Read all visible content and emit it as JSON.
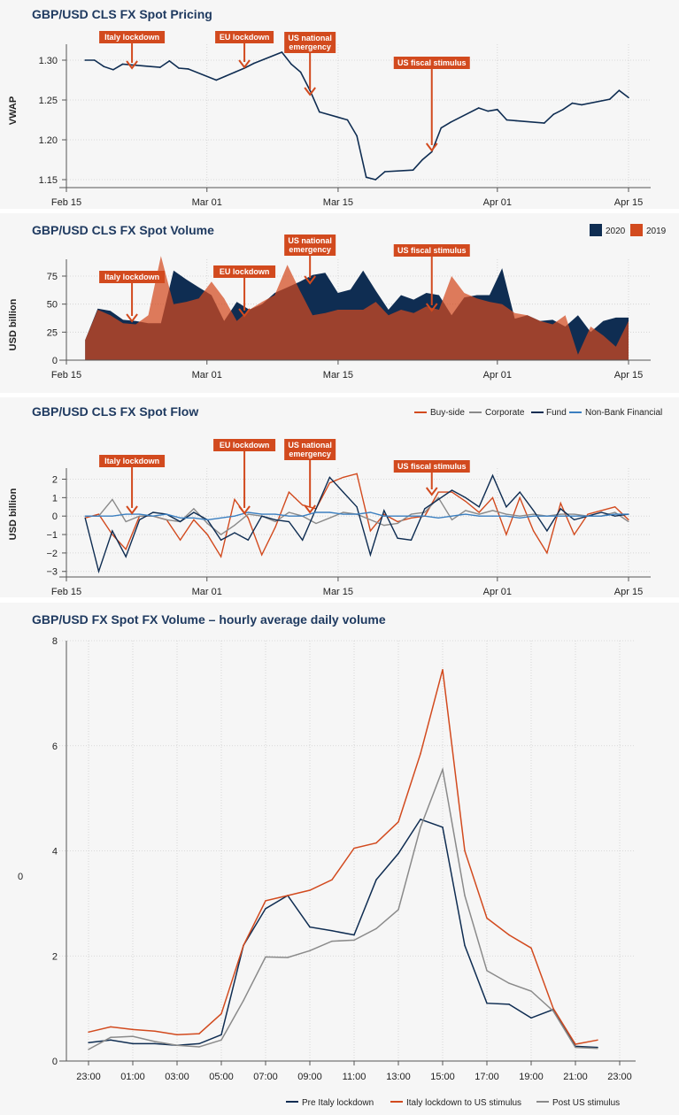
{
  "colors": {
    "navy": "#0f2d52",
    "orange": "#d24a1e",
    "grey": "#8a8a8a",
    "blue": "#3b7fc0",
    "title": "#1f3a60"
  },
  "date_ticks": [
    "Feb 15",
    "Mar 01",
    "Mar 15",
    "Apr 01",
    "Apr 15"
  ],
  "chart_data": [
    {
      "type": "line",
      "title": "GBP/USD CLS FX Spot Pricing",
      "ylabel": "VWAP",
      "ylim": [
        1.14,
        1.32
      ],
      "yticks": [
        "1.15",
        "1.20",
        "1.25",
        "1.30"
      ],
      "x": [
        "Feb 17",
        "Feb 18",
        "Feb 19",
        "Feb 20",
        "Feb 21",
        "Feb 24",
        "Feb 25",
        "Feb 26",
        "Feb 27",
        "Feb 28",
        "Mar 02",
        "Mar 03",
        "Mar 04",
        "Mar 05",
        "Mar 06",
        "Mar 09",
        "Mar 10",
        "Mar 11",
        "Mar 12",
        "Mar 13",
        "Mar 16",
        "Mar 17",
        "Mar 18",
        "Mar 19",
        "Mar 20",
        "Mar 23",
        "Mar 24",
        "Mar 25",
        "Mar 26",
        "Mar 27",
        "Mar 30",
        "Mar 31",
        "Apr 01",
        "Apr 02",
        "Apr 03",
        "Apr 06",
        "Apr 07",
        "Apr 08",
        "Apr 09",
        "Apr 10",
        "Apr 13",
        "Apr 14",
        "Apr 15"
      ],
      "series": [
        {
          "values": [
            1.3,
            1.3,
            1.292,
            1.288,
            1.295,
            1.292,
            1.291,
            1.299,
            1.29,
            1.289,
            1.275,
            1.28,
            1.285,
            1.29,
            1.296,
            1.31,
            1.295,
            1.285,
            1.262,
            1.235,
            1.225,
            1.205,
            1.153,
            1.15,
            1.16,
            1.162,
            1.175,
            1.185,
            1.215,
            1.222,
            1.24,
            1.236,
            1.238,
            1.225,
            1.224,
            1.221,
            1.232,
            1.238,
            1.246,
            1.244,
            1.251,
            1.262,
            1.253
          ]
        }
      ],
      "annotations": [
        {
          "label": "Italy lockdown",
          "x": "Feb 22"
        },
        {
          "label": "EU lockdown",
          "x": "Mar 05"
        },
        {
          "label": "US national emergency",
          "x": "Mar 12"
        },
        {
          "label": "US fiscal stimulus",
          "x": "Mar 25"
        }
      ]
    },
    {
      "type": "area",
      "title": "GBP/USD CLS FX Spot Volume",
      "ylabel": "USD billion",
      "ylim": [
        0,
        90
      ],
      "yticks": [
        "0",
        "25",
        "50",
        "75"
      ],
      "legend": "top-right",
      "series": [
        {
          "name": "2020",
          "values": [
            18,
            46,
            44,
            36,
            35,
            33,
            33,
            80,
            72,
            65,
            58,
            35,
            52,
            45,
            50,
            60,
            65,
            70,
            76,
            78,
            60,
            63,
            80,
            62,
            45,
            58,
            54,
            60,
            58,
            40,
            56,
            58,
            58,
            82,
            37,
            40,
            35,
            36,
            30,
            40,
            25,
            35,
            38,
            38
          ]
        },
        {
          "name": "2019",
          "values": [
            18,
            45,
            40,
            33,
            32,
            40,
            93,
            50,
            52,
            55,
            70,
            55,
            35,
            45,
            52,
            58,
            85,
            62,
            40,
            42,
            45,
            45,
            45,
            52,
            40,
            45,
            42,
            48,
            45,
            75,
            60,
            55,
            52,
            50,
            42,
            40,
            35,
            32,
            40,
            5,
            30,
            22,
            12,
            35
          ]
        }
      ],
      "annotations": [
        {
          "label": "Italy lockdown",
          "x": "Feb 22"
        },
        {
          "label": "EU lockdown",
          "x": "Mar 05"
        },
        {
          "label": "US national emergency",
          "x": "Mar 12"
        },
        {
          "label": "US fiscal stimulus",
          "x": "Mar 25"
        }
      ]
    },
    {
      "type": "line",
      "title": "GBP/USD CLS FX Spot Flow",
      "ylabel": "USD billion",
      "ylim": [
        -3.3,
        2.6
      ],
      "yticks": [
        "−3",
        "−2",
        "−1",
        "0",
        "1",
        "2"
      ],
      "legend": "top-right",
      "series": [
        {
          "name": "Buy-side",
          "values": [
            -0.1,
            0.1,
            -1.0,
            -1.8,
            0.0,
            0.0,
            -0.2,
            -1.3,
            -0.2,
            -1.0,
            -2.2,
            0.9,
            -0.1,
            -2.1,
            -0.6,
            1.3,
            0.6,
            0.4,
            1.8,
            2.1,
            2.3,
            -0.8,
            0.1,
            -0.3,
            -0.1,
            0.0,
            1.3,
            1.3,
            0.8,
            0.2,
            1.0,
            -1.0,
            1.0,
            -0.8,
            -2.0,
            0.7,
            -1.0,
            0.1,
            0.3,
            0.5,
            -0.2
          ]
        },
        {
          "name": "Corporate",
          "values": [
            0.0,
            0.0,
            0.9,
            -0.3,
            0.0,
            0.0,
            -0.2,
            -0.3,
            0.4,
            -0.4,
            -1.0,
            -0.5,
            0.1,
            0.0,
            -0.3,
            0.2,
            0.0,
            -0.4,
            -0.1,
            0.2,
            0.1,
            -0.2,
            -0.5,
            -0.4,
            0.1,
            0.2,
            1.0,
            -0.2,
            0.3,
            0.1,
            0.3,
            0.1,
            0.0,
            0.1,
            0.0,
            0.1,
            0.1,
            0.0,
            0.0,
            0.2,
            -0.3
          ]
        },
        {
          "name": "Fund",
          "values": [
            -0.1,
            -3.0,
            -0.8,
            -2.2,
            -0.2,
            0.2,
            0.1,
            -0.3,
            0.2,
            -0.2,
            -1.3,
            -0.9,
            -1.3,
            0.0,
            -0.2,
            -0.3,
            -1.3,
            0.4,
            2.1,
            1.3,
            0.5,
            -2.1,
            0.3,
            -1.2,
            -1.3,
            0.4,
            0.9,
            1.4,
            1.0,
            0.5,
            2.2,
            0.5,
            1.3,
            0.3,
            -0.8,
            0.4,
            -0.2,
            0.0,
            0.2,
            0.0,
            0.1
          ]
        },
        {
          "name": "Non-Bank Financial",
          "values": [
            0.0,
            0.0,
            0.0,
            0.1,
            0.1,
            0.0,
            0.1,
            -0.1,
            -0.1,
            -0.2,
            -0.1,
            0.0,
            0.2,
            0.1,
            0.1,
            0.0,
            0.0,
            0.2,
            0.2,
            0.1,
            0.1,
            0.2,
            0.0,
            0.0,
            0.0,
            0.0,
            -0.1,
            0.0,
            0.1,
            0.0,
            0.0,
            0.0,
            -0.1,
            0.0,
            0.0,
            0.0,
            0.0,
            0.0,
            0.0,
            0.1,
            0.1
          ]
        }
      ],
      "annotations": [
        {
          "label": "Italy lockdown",
          "x": "Feb 22"
        },
        {
          "label": "EU lockdown",
          "x": "Mar 05"
        },
        {
          "label": "US national emergency",
          "x": "Mar 12"
        },
        {
          "label": "US fiscal stimulus",
          "x": "Mar 25"
        }
      ]
    },
    {
      "type": "line",
      "title": "GBP/USD FX Spot FX Volume – hourly average daily volume",
      "ylabel": "0",
      "ylim": [
        0,
        8
      ],
      "yticks": [
        "0",
        "2",
        "4",
        "6",
        "8"
      ],
      "categories": [
        "23:00",
        "00:00",
        "01:00",
        "02:00",
        "03:00",
        "04:00",
        "05:00",
        "06:00",
        "07:00",
        "08:00",
        "09:00",
        "10:00",
        "11:00",
        "12:00",
        "13:00",
        "14:00",
        "15:00",
        "16:00",
        "17:00",
        "18:00",
        "19:00",
        "20:00",
        "21:00",
        "22:00"
      ],
      "xticks": [
        "23:00",
        "01:00",
        "03:00",
        "05:00",
        "07:00",
        "09:00",
        "11:00",
        "13:00",
        "15:00",
        "17:00",
        "19:00",
        "21:00",
        "23:00"
      ],
      "legend": "bottom",
      "series": [
        {
          "name": "Pre Italy lockdown",
          "values": [
            0.35,
            0.4,
            0.33,
            0.33,
            0.3,
            0.33,
            0.5,
            2.2,
            2.9,
            3.15,
            2.55,
            2.48,
            2.4,
            3.45,
            3.95,
            4.6,
            4.45,
            2.2,
            1.1,
            1.08,
            0.82,
            0.98,
            0.28,
            0.26
          ]
        },
        {
          "name": "Italy lockdown to US stimulus",
          "values": [
            0.55,
            0.65,
            0.6,
            0.57,
            0.5,
            0.52,
            0.9,
            2.2,
            3.05,
            3.15,
            3.25,
            3.45,
            4.05,
            4.15,
            4.55,
            5.85,
            7.45,
            4.0,
            2.72,
            2.4,
            2.15,
            1.0,
            0.32,
            0.4
          ]
        },
        {
          "name": "Post US stimulus",
          "values": [
            0.22,
            0.45,
            0.47,
            0.37,
            0.3,
            0.27,
            0.4,
            1.15,
            1.98,
            1.97,
            2.1,
            2.28,
            2.3,
            2.52,
            2.88,
            4.45,
            5.55,
            3.15,
            1.72,
            1.48,
            1.33,
            0.95,
            0.26,
            0.24
          ]
        }
      ]
    }
  ]
}
